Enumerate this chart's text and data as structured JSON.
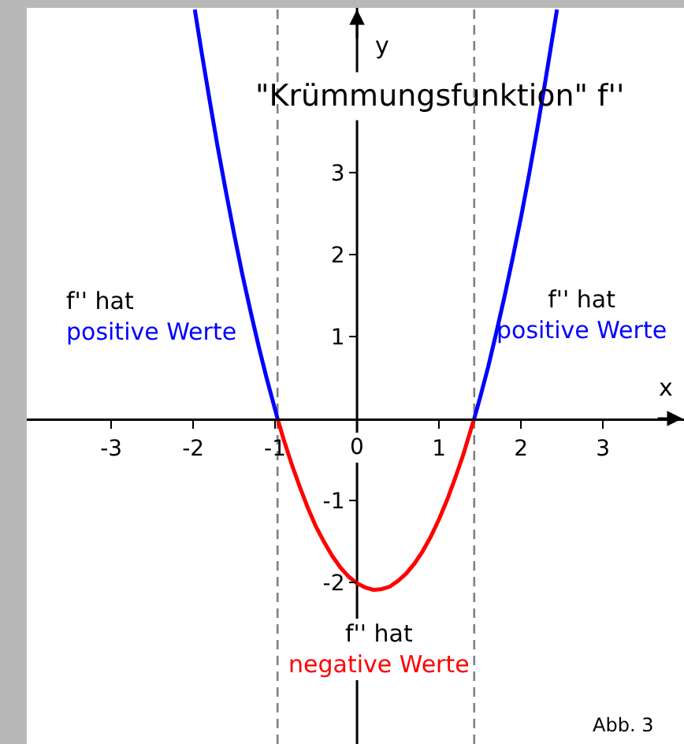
{
  "chart_data": {
    "type": "line",
    "title": "\"Krümmungsfunktion\" f''",
    "xlabel": "x",
    "ylabel": "y",
    "series": [
      {
        "color": "#0000ff",
        "x": [
          -1.98,
          -1.9,
          -1.8,
          -1.7,
          -1.6,
          -1.5,
          -1.4,
          -1.3,
          -1.2,
          -1.1,
          -0.97
        ],
        "values": [
          4.99,
          4.49,
          3.89,
          3.31,
          2.77,
          2.25,
          1.76,
          1.31,
          0.88,
          0.48,
          0
        ]
      },
      {
        "color": "#ff0000",
        "x": [
          -0.97,
          -0.9,
          -0.8,
          -0.7,
          -0.6,
          -0.5,
          -0.4,
          -0.3,
          -0.2,
          -0.1,
          0,
          0.1,
          0.2,
          0.3,
          0.4,
          0.5,
          0.6,
          0.7,
          0.8,
          0.9,
          1.0,
          1.1,
          1.2,
          1.3,
          1.43
        ],
        "values": [
          0,
          -0.24,
          -0.55,
          -0.83,
          -1.09,
          -1.32,
          -1.51,
          -1.68,
          -1.82,
          -1.93,
          -2.01,
          -2.06,
          -2.09,
          -2.08,
          -2.05,
          -1.98,
          -1.89,
          -1.77,
          -1.62,
          -1.44,
          -1.23,
          -0.99,
          -0.72,
          -0.43,
          0
        ]
      },
      {
        "color": "#0000ff",
        "x": [
          1.43,
          1.5,
          1.6,
          1.7,
          1.8,
          1.9,
          2.0,
          2.1,
          2.2,
          2.3,
          2.44
        ],
        "values": [
          0,
          0.25,
          0.63,
          1.05,
          1.49,
          1.96,
          2.45,
          2.98,
          3.54,
          4.13,
          4.99
        ]
      }
    ],
    "xlim": [
      -4.03,
      3.99
    ],
    "ylim": [
      -3.97,
      5.01
    ],
    "xticks": [
      -3,
      -2,
      -1,
      0,
      1,
      2,
      3
    ],
    "yticks": [
      -2,
      -1,
      1,
      2,
      3
    ],
    "ref_lines": [
      {
        "axis": "x",
        "value": -0.97,
        "color": "#808080",
        "line_style": "dashed"
      },
      {
        "axis": "x",
        "value": 1.43,
        "color": "#808080",
        "line_style": "dashed"
      }
    ],
    "annotations": [
      "f'' hat\npositive Werte",
      "f'' hat\npositive Werte",
      "f'' hat\nnegative Werte",
      "Abb. 3"
    ],
    "grid": false,
    "marker": "none"
  }
}
